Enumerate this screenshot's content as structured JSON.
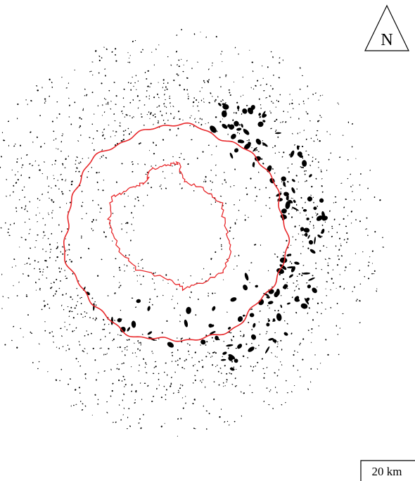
{
  "north_arrow": {
    "label": "N"
  },
  "scale_bar": {
    "label": "20 km"
  }
}
